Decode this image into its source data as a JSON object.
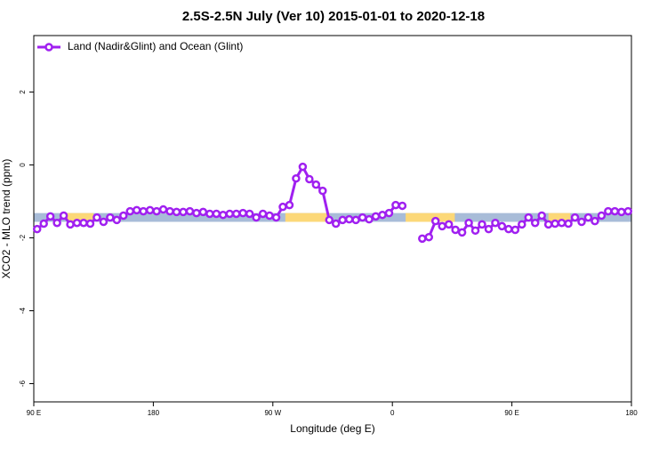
{
  "chart_data": {
    "type": "line",
    "title": "2.5S-2.5N July (Ver 10)   2015-01-01 to 2020-12-18",
    "x_label": "Longitude (deg E)",
    "y_label": "XCO2 - MLO trend (ppm)",
    "xlim": [
      90,
      540
    ],
    "xticks": [
      {
        "value": 90,
        "label": "90 E"
      },
      {
        "value": 180,
        "label": "180"
      },
      {
        "value": 270,
        "label": "90 W"
      },
      {
        "value": 360,
        "label": "0"
      },
      {
        "value": 450,
        "label": "90 E"
      },
      {
        "value": 540,
        "label": "180"
      }
    ],
    "ylim": [
      -6.5,
      3.55
    ],
    "yticks": [
      -6,
      -4,
      -2,
      0,
      2
    ],
    "legend": "top-left",
    "surface_band": {
      "ylim": [
        -1.56,
        -1.32
      ],
      "ocean_color": "#a8bcd8",
      "land_color": "#fcd878",
      "land": [
        [
          114.9,
          135
        ],
        [
          279.4,
          313
        ],
        [
          370,
          407
        ],
        [
          477.5,
          494
        ]
      ]
    },
    "x": [
      92.5,
      97.5,
      102.5,
      107.5,
      112.5,
      117.5,
      122.5,
      127.5,
      132.5,
      137.5,
      142.5,
      147.5,
      152.5,
      157.5,
      162.5,
      167.5,
      172.5,
      177.5,
      182.5,
      187.5,
      192.5,
      197.5,
      202.5,
      207.5,
      212.5,
      217.5,
      222.5,
      227.5,
      232.5,
      237.5,
      242.5,
      247.5,
      252.5,
      257.5,
      262.5,
      267.5,
      272.5,
      277.5,
      282.5,
      287.5,
      292.5,
      297.5,
      302.5,
      307.5,
      312.5,
      317.5,
      322.5,
      327.5,
      332.5,
      337.5,
      342.5,
      347.5,
      352.5,
      357.5,
      362.5,
      367.5,
      372.5,
      377.5,
      382.5,
      387.5,
      392.5,
      397.5,
      402.5,
      407.5,
      412.5,
      417.5,
      422.5,
      427.5,
      432.5,
      437.5,
      442.5,
      447.5,
      452.5,
      457.5,
      462.5,
      467.5,
      472.5,
      477.5,
      482.5,
      487.5,
      492.5,
      497.5,
      502.5,
      507.5,
      512.5,
      517.5,
      522.5,
      527.5,
      532.5,
      537.5
    ],
    "series": [
      {
        "name": "Land (Nadir&Glint) and Ocean (Glint)",
        "color": "#a020f0",
        "values": [
          -1.76,
          -1.61,
          -1.41,
          -1.59,
          -1.39,
          -1.63,
          -1.59,
          -1.59,
          -1.61,
          -1.44,
          -1.56,
          -1.44,
          -1.51,
          -1.39,
          -1.27,
          -1.24,
          -1.27,
          -1.24,
          -1.27,
          -1.22,
          -1.27,
          -1.29,
          -1.29,
          -1.27,
          -1.32,
          -1.29,
          -1.34,
          -1.34,
          -1.37,
          -1.34,
          -1.34,
          -1.32,
          -1.34,
          -1.44,
          -1.34,
          -1.39,
          -1.44,
          -1.15,
          -1.1,
          -0.37,
          -0.05,
          -0.39,
          -0.54,
          -0.71,
          -1.51,
          -1.61,
          -1.51,
          -1.49,
          -1.51,
          -1.44,
          -1.49,
          -1.41,
          -1.37,
          -1.32,
          -1.1,
          -1.12,
          null,
          null,
          -2.02,
          -1.98,
          -1.54,
          -1.68,
          -1.63,
          -1.78,
          -1.85,
          -1.59,
          -1.8,
          -1.63,
          -1.76,
          -1.59,
          -1.68,
          -1.76,
          -1.78,
          -1.63,
          -1.44,
          -1.59,
          -1.39,
          -1.63,
          -1.61,
          -1.59,
          -1.61,
          -1.44,
          -1.56,
          -1.44,
          -1.54,
          -1.39,
          -1.27,
          -1.27,
          -1.29,
          -1.27
        ]
      }
    ]
  }
}
